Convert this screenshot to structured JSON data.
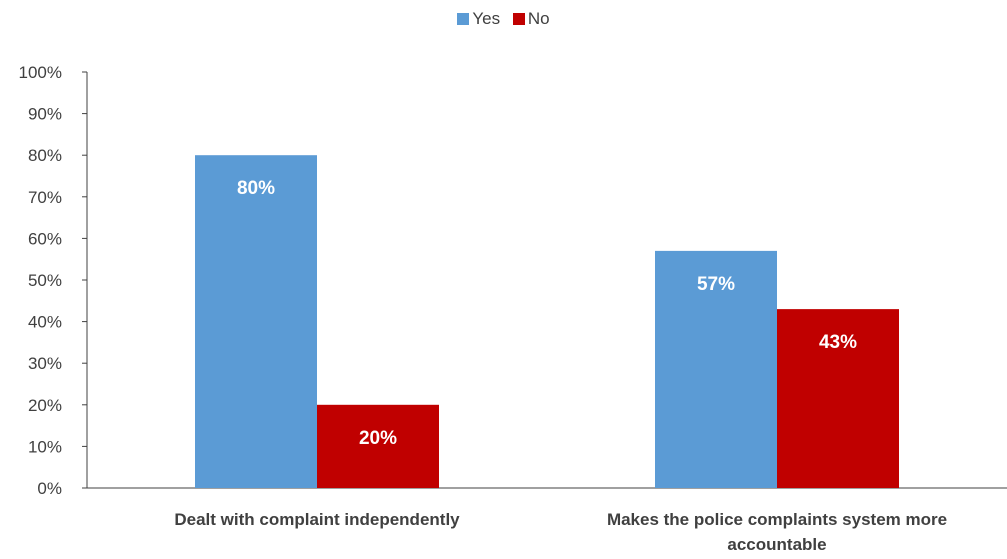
{
  "chart_data": {
    "type": "bar",
    "categories": [
      "Dealt with complaint independently",
      "Makes the police complaints system more accountable"
    ],
    "category_lines": [
      [
        "Dealt with complaint independently"
      ],
      [
        "Makes the police complaints system more",
        "accountable"
      ]
    ],
    "series": [
      {
        "name": "Yes",
        "values": [
          80,
          57
        ],
        "color": "#5B9BD5",
        "labels": [
          "80%",
          "57%"
        ]
      },
      {
        "name": "No",
        "values": [
          20,
          43
        ],
        "color": "#C00000",
        "labels": [
          "20%",
          "43%"
        ]
      }
    ],
    "ylim": [
      0,
      100
    ],
    "yticks": [
      "0%",
      "10%",
      "20%",
      "30%",
      "40%",
      "50%",
      "60%",
      "70%",
      "80%",
      "90%",
      "100%"
    ],
    "legend_position": "top-center",
    "grid": false
  }
}
